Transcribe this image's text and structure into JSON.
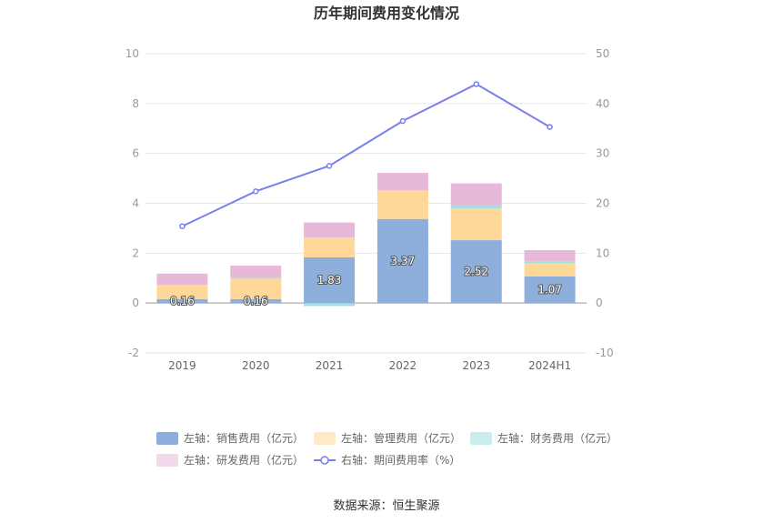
{
  "chart_data": {
    "type": "bar",
    "title": "历年期间费用变化情况",
    "categories": [
      "2019",
      "2020",
      "2021",
      "2022",
      "2023",
      "2024H1"
    ],
    "series": [
      {
        "name": "左轴：销售费用（亿元）",
        "type": "bar",
        "axis": "left",
        "color": "#8eaedc",
        "values": [
          0.16,
          0.16,
          1.83,
          3.37,
          2.52,
          1.07
        ],
        "labels": [
          "0.16",
          "0.16",
          "1.83",
          "3.37",
          "2.52",
          "1.07"
        ]
      },
      {
        "name": "左轴：管理费用（亿元）",
        "type": "bar",
        "axis": "left",
        "color": "#fdd898",
        "values": [
          0.55,
          0.82,
          0.8,
          1.13,
          1.28,
          0.53
        ]
      },
      {
        "name": "左轴：财务费用（亿元）",
        "type": "bar",
        "axis": "left",
        "color": "#9ee0e0",
        "values": [
          0.02,
          0.02,
          -0.12,
          0.02,
          0.1,
          0.08
        ]
      },
      {
        "name": "左轴：研发费用（亿元）",
        "type": "bar",
        "axis": "left",
        "color": "#e7b9d9",
        "values": [
          0.45,
          0.5,
          0.6,
          0.7,
          0.9,
          0.44
        ]
      },
      {
        "name": "右轴：期间费用率（%）",
        "type": "line",
        "axis": "right",
        "color": "#7b7fe8",
        "values": [
          15.4,
          22.4,
          27.5,
          36.5,
          43.9,
          35.3
        ]
      }
    ],
    "left_axis": {
      "min": -2,
      "max": 10,
      "ticks": [
        -2,
        0,
        2,
        4,
        6,
        8,
        10
      ]
    },
    "right_axis": {
      "min": -10,
      "max": 50,
      "ticks": [
        -10,
        0,
        10,
        20,
        30,
        40,
        50
      ]
    },
    "grid": true,
    "legend_position": "bottom"
  },
  "source": "数据来源：恒生聚源"
}
